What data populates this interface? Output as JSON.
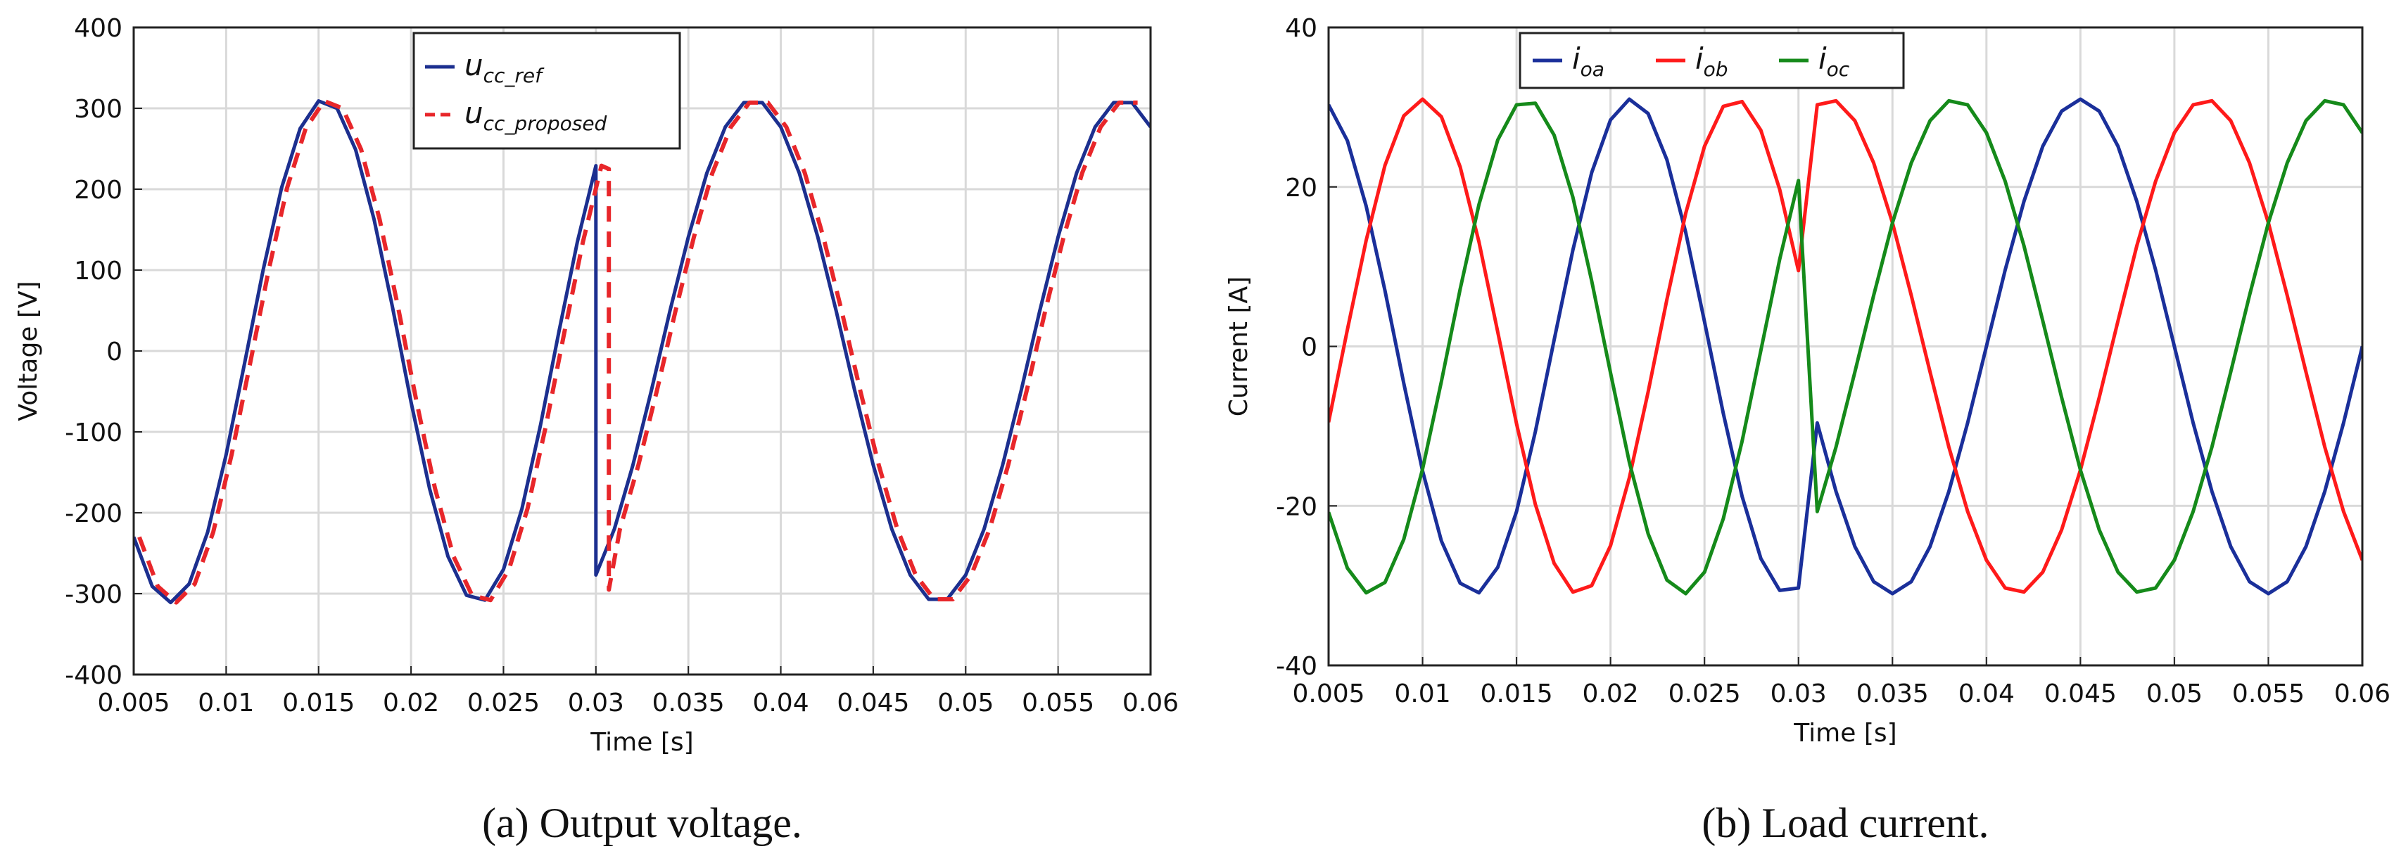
{
  "chart_data": [
    {
      "type": "line",
      "caption": "(a)  Output voltage.",
      "xlabel": "Time [s]",
      "ylabel": "Voltage [V]",
      "xlim": [
        0.005,
        0.06
      ],
      "xticks": [
        0.005,
        0.01,
        0.015,
        0.02,
        0.025,
        0.03,
        0.035,
        0.04,
        0.045,
        0.05,
        0.055,
        0.06
      ],
      "ylim": [
        -400,
        400
      ],
      "yticks": [
        -400,
        -300,
        -200,
        -100,
        0,
        100,
        200,
        300,
        400
      ],
      "grid": true,
      "legend": "top-left",
      "legend_layout": "vertical",
      "series": [
        {
          "name": "u",
          "subscript": "cc_ref",
          "color": "#1c2f8f",
          "dash": "solid",
          "x": [
            0.005,
            0.006,
            0.007,
            0.008,
            0.009,
            0.01,
            0.011,
            0.012,
            0.013,
            0.014,
            0.015,
            0.016,
            0.017,
            0.018,
            0.019,
            0.02,
            0.021,
            0.022,
            0.023,
            0.024,
            0.025,
            0.026,
            0.027,
            0.028,
            0.029,
            0.03,
            0.03,
            0.031,
            0.032,
            0.033,
            0.034,
            0.035,
            0.036,
            0.037,
            0.038,
            0.039,
            0.04,
            0.041,
            0.042,
            0.043,
            0.044,
            0.045,
            0.046,
            0.047,
            0.048,
            0.049,
            0.05,
            0.051,
            0.052,
            0.053,
            0.054,
            0.055,
            0.056,
            0.057,
            0.058,
            0.059,
            0.06
          ],
          "values": [
            -230,
            -291,
            -311,
            -288,
            -224,
            -128,
            -15,
            100,
            202,
            275,
            309,
            300,
            249,
            163,
            54,
            -63,
            -170,
            -254,
            -302,
            -308,
            -270,
            -195,
            -92,
            24,
            135,
            229,
            -277,
            -220,
            -141,
            -49,
            49,
            141,
            220,
            277,
            307,
            307,
            277,
            220,
            141,
            49,
            -49,
            -141,
            -220,
            -277,
            -307,
            -307,
            -277,
            -220,
            -141,
            -49,
            49,
            141,
            220,
            277,
            307,
            307,
            277
          ]
        },
        {
          "name": "u",
          "subscript": "cc_proposed",
          "color": "#e8262a",
          "dash": "dashed",
          "x": [
            0.0053,
            0.0063,
            0.0073,
            0.0083,
            0.0093,
            0.0103,
            0.0113,
            0.0123,
            0.0133,
            0.0143,
            0.0153,
            0.0163,
            0.0173,
            0.0183,
            0.0193,
            0.0203,
            0.0213,
            0.0223,
            0.0233,
            0.0243,
            0.0253,
            0.0263,
            0.0273,
            0.0283,
            0.0293,
            0.0303,
            0.0307,
            0.0307,
            0.0313,
            0.0323,
            0.0333,
            0.0343,
            0.0353,
            0.0363,
            0.0373,
            0.0383,
            0.0393,
            0.0403,
            0.0413,
            0.0423,
            0.0433,
            0.0443,
            0.0453,
            0.0463,
            0.0473,
            0.0483,
            0.0493,
            0.0503,
            0.0513,
            0.0523,
            0.0533,
            0.0543,
            0.0553,
            0.0563,
            0.0573,
            0.0583,
            0.0593
          ],
          "values": [
            -230,
            -291,
            -311,
            -288,
            -224,
            -128,
            -15,
            100,
            202,
            275,
            309,
            300,
            249,
            163,
            54,
            -63,
            -170,
            -254,
            -302,
            -308,
            -270,
            -195,
            -92,
            24,
            135,
            229,
            225,
            -295,
            -220,
            -141,
            -49,
            49,
            141,
            220,
            277,
            307,
            307,
            277,
            220,
            141,
            49,
            -49,
            -141,
            -220,
            -277,
            -307,
            -307,
            -277,
            -220,
            -141,
            -49,
            49,
            141,
            220,
            277,
            307,
            307
          ]
        }
      ]
    },
    {
      "type": "line",
      "caption": "(b)  Load current.",
      "xlabel": "Time [s]",
      "ylabel": "Current [A]",
      "xlim": [
        0.005,
        0.06
      ],
      "xticks": [
        0.005,
        0.01,
        0.015,
        0.02,
        0.025,
        0.03,
        0.035,
        0.04,
        0.045,
        0.05,
        0.055,
        0.06
      ],
      "ylim": [
        -40,
        40
      ],
      "yticks": [
        -40,
        -20,
        0,
        20,
        40
      ],
      "grid": true,
      "legend": "top-center",
      "legend_layout": "horizontal",
      "x": [
        0.005,
        0.006,
        0.007,
        0.008,
        0.009,
        0.01,
        0.011,
        0.012,
        0.013,
        0.014,
        0.015,
        0.016,
        0.017,
        0.018,
        0.019,
        0.02,
        0.021,
        0.022,
        0.023,
        0.024,
        0.025,
        0.026,
        0.027,
        0.028,
        0.029,
        0.03,
        0.031,
        0.032,
        0.033,
        0.034,
        0.035,
        0.036,
        0.037,
        0.038,
        0.039,
        0.04,
        0.041,
        0.042,
        0.043,
        0.044,
        0.045,
        0.046,
        0.047,
        0.048,
        0.049,
        0.05,
        0.051,
        0.052,
        0.053,
        0.054,
        0.055,
        0.056,
        0.057,
        0.058,
        0.059,
        0.06
      ],
      "series": [
        {
          "name": "i",
          "subscript": "oa",
          "color": "#1a2f9a",
          "dash": "solid",
          "values": [
            30.3,
            25.8,
            17.6,
            7.0,
            -4.6,
            -15.6,
            -24.4,
            -29.7,
            -30.9,
            -27.7,
            -20.7,
            -10.7,
            0.8,
            12.1,
            21.8,
            28.4,
            31.0,
            29.2,
            23.4,
            14.3,
            3.1,
            -8.4,
            -18.8,
            -26.6,
            -30.6,
            -30.3,
            -9.6,
            -18.2,
            -25.1,
            -29.5,
            -31,
            -29.5,
            -25.1,
            -18.2,
            -9.6,
            0,
            9.6,
            18.2,
            25.1,
            29.5,
            31,
            29.5,
            25.1,
            18.2,
            9.6,
            0,
            -9.6,
            -18.2,
            -25.1,
            -29.5,
            -31,
            -29.5,
            -25.1,
            -18.2,
            -9.6,
            0
          ]
        },
        {
          "name": "i",
          "subscript": "ob",
          "color": "#ff1a1a",
          "dash": "solid",
          "values": [
            -9.5,
            2.1,
            13.3,
            22.7,
            28.9,
            31.0,
            28.8,
            22.5,
            13.1,
            1.8,
            -9.7,
            -19.8,
            -27.2,
            -30.8,
            -30.0,
            -25.0,
            -16.5,
            -5.7,
            5.9,
            16.7,
            25.1,
            30.1,
            30.7,
            27.1,
            19.7,
            9.5,
            30.3,
            30.8,
            28.3,
            23.0,
            15.5,
            6.4,
            -3.2,
            -12.6,
            -20.7,
            -26.8,
            -30.3,
            -30.8,
            -28.3,
            -23.0,
            -15.5,
            -6.4,
            3.2,
            12.6,
            20.7,
            26.8,
            30.3,
            30.8,
            28.3,
            23.0,
            15.5,
            6.4,
            -3.2,
            -12.6,
            -20.7,
            -26.8
          ]
        },
        {
          "name": "i",
          "subscript": "oc",
          "color": "#158a1a",
          "dash": "solid",
          "values": [
            -20.8,
            -27.8,
            -30.9,
            -29.6,
            -24.2,
            -15.4,
            -4.4,
            7.2,
            17.8,
            25.9,
            30.3,
            30.5,
            26.5,
            18.7,
            8.2,
            -3.3,
            -14.5,
            -23.5,
            -29.3,
            -31.0,
            -28.3,
            -21.6,
            -11.9,
            -0.5,
            10.9,
            20.8,
            -20.7,
            -12.6,
            -3.2,
            6.4,
            15.5,
            23.0,
            28.3,
            30.8,
            30.3,
            26.8,
            20.7,
            12.6,
            3.2,
            -6.4,
            -15.5,
            -23.0,
            -28.3,
            -30.8,
            -30.3,
            -26.8,
            -20.7,
            -12.6,
            -3.2,
            6.4,
            15.5,
            23.0,
            28.3,
            30.8,
            30.3,
            26.8
          ]
        }
      ]
    }
  ]
}
